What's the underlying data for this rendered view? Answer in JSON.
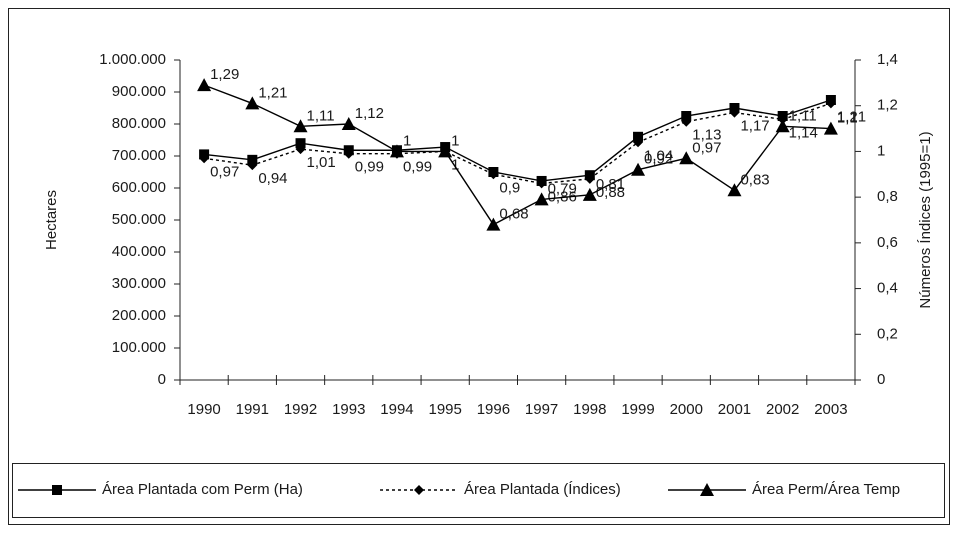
{
  "chart_data": {
    "type": "line",
    "categories": [
      "1990",
      "1991",
      "1992",
      "1993",
      "1994",
      "1995",
      "1996",
      "1997",
      "1998",
      "1999",
      "2000",
      "2001",
      "2002",
      "2003"
    ],
    "ylabel": "Hectares",
    "y2label": "Números Índices (1995=1)",
    "ylim": [
      0,
      1000000
    ],
    "yticks": [
      0,
      {
        "value": 100000,
        "label": "100.000"
      },
      {
        "value": 200000,
        "label": "200.000"
      },
      {
        "value": 300000,
        "label": "300.000"
      },
      {
        "value": 400000,
        "label": "400.000"
      },
      {
        "value": 500000,
        "label": "500.000"
      },
      {
        "value": 600000,
        "label": "600.000"
      },
      {
        "value": 700000,
        "label": "700.000"
      },
      {
        "value": 800000,
        "label": "800.000"
      },
      {
        "value": 900000,
        "label": "900.000"
      },
      {
        "value": 1000000,
        "label": "1.000.000"
      }
    ],
    "y2lim": [
      0,
      1.4
    ],
    "y2ticks": [
      0,
      {
        "value": 0.2,
        "label": "0,2"
      },
      {
        "value": 0.4,
        "label": "0,4"
      },
      {
        "value": 0.6,
        "label": "0,6"
      },
      {
        "value": 0.8,
        "label": "0,8"
      },
      1,
      {
        "value": 1.2,
        "label": "1,2"
      },
      {
        "value": 1.4,
        "label": "1,4"
      }
    ],
    "legend": "bottom",
    "series": [
      {
        "name": "Área Plantada com Perm (Ha)",
        "color": "#000000",
        "marker": "square",
        "dash": "solid",
        "values": [
          705000,
          688000,
          740000,
          718000,
          718000,
          728000,
          650000,
          622000,
          640000,
          760000,
          825000,
          850000,
          825000,
          875000
        ]
      },
      {
        "name": "Área Plantada (Índices)",
        "color": "#000000",
        "marker": "diamond",
        "dash": "dotted",
        "axis": "y2",
        "values": [
          0.97,
          0.94,
          1.01,
          0.99,
          0.99,
          1,
          0.9,
          0.86,
          0.88,
          1.04,
          1.13,
          1.17,
          1.14,
          1.21
        ],
        "value_labels": [
          "0,97",
          "0,94",
          "1,01",
          "0,99",
          "0,99",
          "1",
          "0,9",
          "0,86",
          "0,88",
          "1,04",
          "1,13",
          "1,17",
          "1,14",
          "1,21"
        ]
      },
      {
        "name": "Área Perm/Área Temp",
        "color": "#000000",
        "marker": "triangle",
        "dash": "solid",
        "axis": "y2",
        "values": [
          1.29,
          1.21,
          1.11,
          1.12,
          1,
          1,
          0.68,
          0.79,
          0.81,
          0.92,
          0.97,
          0.83,
          1.11,
          1.1
        ],
        "value_labels": [
          "1,29",
          "1,21",
          "1,11",
          "1,12",
          "1",
          "1",
          "0,68",
          "0,79",
          "0,81",
          "0,92",
          "0,97",
          "0,83",
          "1,11",
          "1,1"
        ]
      }
    ]
  }
}
